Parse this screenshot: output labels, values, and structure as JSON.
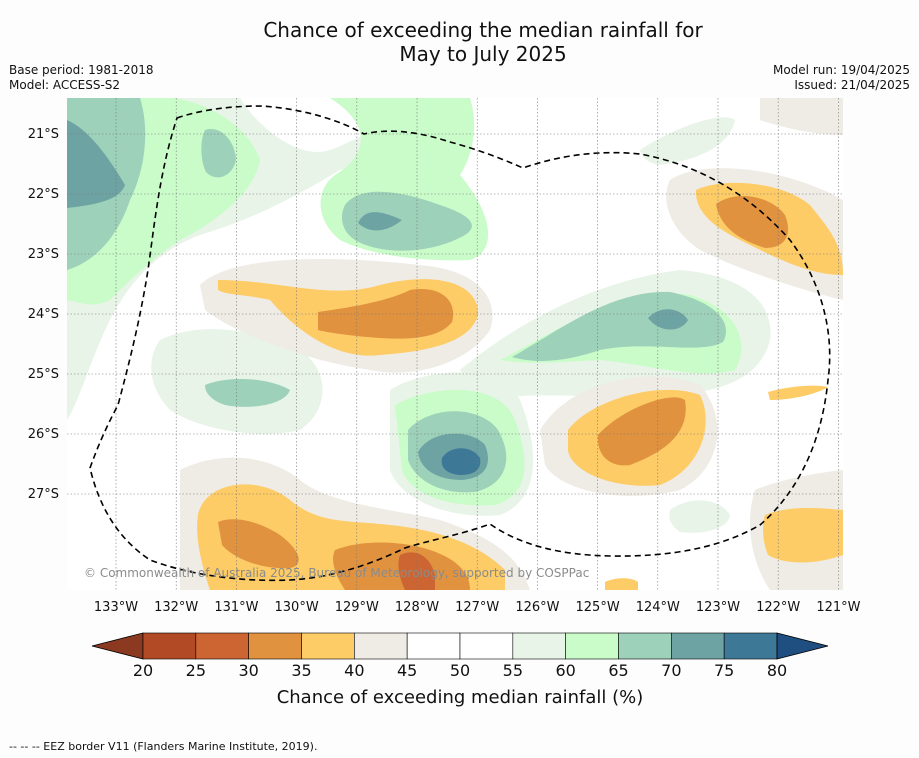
{
  "title": {
    "line1": "Chance of exceeding the median rainfall for",
    "line2": "May to July 2025"
  },
  "meta": {
    "base_period": "Base period: 1981-2018",
    "model": "Model: ACCESS-S2",
    "model_run": "Model run: 19/04/2025",
    "issued": "Issued: 21/04/2025"
  },
  "map": {
    "lat_labels": [
      "21°S",
      "22°S",
      "23°S",
      "24°S",
      "25°S",
      "26°S",
      "27°S"
    ],
    "lon_labels": [
      "133°W",
      "132°W",
      "131°W",
      "130°W",
      "129°W",
      "128°W",
      "127°W",
      "126°W",
      "125°W",
      "124°W",
      "123°W",
      "122°W",
      "121°W"
    ],
    "credit": "© Commonwealth of Australia 2025, Bureau of Meteorology, supported by COSPPac",
    "border_style": "dashed",
    "background": "#ffffff"
  },
  "colorbar": {
    "ticks": [
      "20",
      "25",
      "30",
      "35",
      "40",
      "45",
      "50",
      "55",
      "60",
      "65",
      "70",
      "75",
      "80"
    ],
    "colors": [
      "#b24b25",
      "#cd6532",
      "#e0923f",
      "#fdcc66",
      "#efece6",
      "#ffffff",
      "#ffffff",
      "#e8f4e8",
      "#c9fcc9",
      "#9dd1b9",
      "#6ea3a3",
      "#3e7897"
    ],
    "under_color": "#8b3a21",
    "over_color": "#1f4e80",
    "label": "Chance of exceeding median rainfall (%)"
  },
  "footer": "--  --  -- EEZ border V11 (Flanders Marine Institute, 2019)."
}
